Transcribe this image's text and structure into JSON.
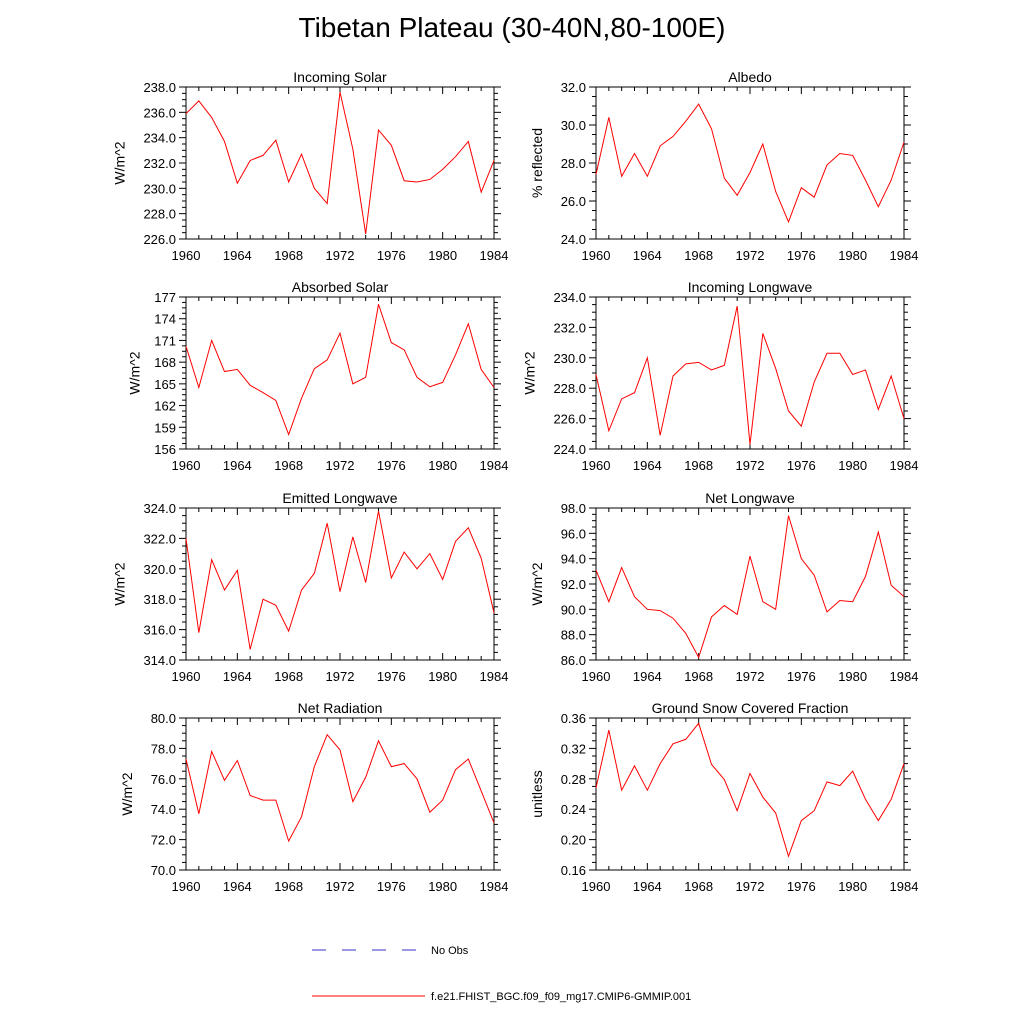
{
  "title": "Tibetan Plateau (30-40N,80-100E)",
  "colors": {
    "model": "#ff0000",
    "obs": "#3333cc",
    "axis": "#000000"
  },
  "legend": [
    {
      "label": "No Obs",
      "style": "dashed",
      "color": "#3333cc"
    },
    {
      "label": "f.e21.FHIST_BGC.f09_f09_mg17.CMIP6-GMMIP.001",
      "style": "solid",
      "color": "#ff0000"
    }
  ],
  "chart_data": [
    {
      "type": "line",
      "title": "Incoming Solar",
      "ylabel": "W/m^2",
      "x": [
        1960,
        1961,
        1962,
        1963,
        1964,
        1965,
        1966,
        1967,
        1968,
        1969,
        1970,
        1971,
        1972,
        1973,
        1974,
        1975,
        1976,
        1977,
        1978,
        1979,
        1980,
        1981,
        1982,
        1983,
        1984
      ],
      "values": [
        235.9,
        236.9,
        235.6,
        233.7,
        230.4,
        232.2,
        232.6,
        233.8,
        230.5,
        232.7,
        230.0,
        228.8,
        237.6,
        233.1,
        226.4,
        234.6,
        233.4,
        230.6,
        230.5,
        230.7,
        231.5,
        232.5,
        233.7,
        229.7,
        232.2
      ],
      "xlim": [
        1960,
        1984
      ],
      "ylim": [
        226.0,
        238.0
      ],
      "xticks": [
        "1960",
        "1964",
        "1968",
        "1972",
        "1976",
        "1980",
        "1984"
      ],
      "yticks": [
        "226.0",
        "228.0",
        "230.0",
        "232.0",
        "234.0",
        "236.0",
        "238.0"
      ]
    },
    {
      "type": "line",
      "title": "Albedo",
      "ylabel": "% reflected",
      "x": [
        1960,
        1961,
        1962,
        1963,
        1964,
        1965,
        1966,
        1967,
        1968,
        1969,
        1970,
        1971,
        1972,
        1973,
        1974,
        1975,
        1976,
        1977,
        1978,
        1979,
        1980,
        1981,
        1982,
        1983,
        1984
      ],
      "values": [
        27.4,
        30.4,
        27.3,
        28.5,
        27.3,
        28.9,
        29.4,
        30.2,
        31.1,
        29.8,
        27.2,
        26.3,
        27.5,
        29.0,
        26.5,
        24.9,
        26.7,
        26.2,
        27.9,
        28.5,
        28.4,
        27.1,
        25.7,
        27.1,
        29.1
      ],
      "xlim": [
        1960,
        1984
      ],
      "ylim": [
        24.0,
        32.0
      ],
      "xticks": [
        "1960",
        "1964",
        "1968",
        "1972",
        "1976",
        "1980",
        "1984"
      ],
      "yticks": [
        "24.0",
        "26.0",
        "28.0",
        "30.0",
        "32.0"
      ]
    },
    {
      "type": "line",
      "title": "Absorbed Solar",
      "ylabel": "W/m^2",
      "x": [
        1960,
        1961,
        1962,
        1963,
        1964,
        1965,
        1966,
        1967,
        1968,
        1969,
        1970,
        1971,
        1972,
        1973,
        1974,
        1975,
        1976,
        1977,
        1978,
        1979,
        1980,
        1981,
        1982,
        1983,
        1984
      ],
      "values": [
        170.2,
        164.5,
        171.0,
        166.7,
        167.0,
        164.8,
        163.8,
        162.7,
        158.0,
        163.0,
        167.1,
        168.3,
        172.0,
        165.0,
        165.9,
        176.0,
        170.7,
        169.7,
        165.9,
        164.6,
        165.2,
        169.0,
        173.3,
        167.0,
        164.5
      ],
      "xlim": [
        1960,
        1984
      ],
      "ylim": [
        156,
        177
      ],
      "xticks": [
        "1960",
        "1964",
        "1968",
        "1972",
        "1976",
        "1980",
        "1984"
      ],
      "yticks": [
        "156",
        "159",
        "162",
        "165",
        "168",
        "171",
        "174",
        "177"
      ]
    },
    {
      "type": "line",
      "title": "Incoming Longwave",
      "ylabel": "W/m^2",
      "x": [
        1960,
        1961,
        1962,
        1963,
        1964,
        1965,
        1966,
        1967,
        1968,
        1969,
        1970,
        1971,
        1972,
        1973,
        1974,
        1975,
        1976,
        1977,
        1978,
        1979,
        1980,
        1981,
        1982,
        1983,
        1984
      ],
      "values": [
        228.9,
        225.2,
        227.3,
        227.7,
        230.0,
        224.9,
        228.8,
        229.6,
        229.7,
        229.2,
        229.5,
        233.4,
        224.3,
        231.6,
        229.3,
        226.5,
        225.5,
        228.4,
        230.3,
        230.3,
        228.9,
        229.2,
        226.6,
        228.8,
        226.0
      ],
      "xlim": [
        1960,
        1984
      ],
      "ylim": [
        224.0,
        234.0
      ],
      "xticks": [
        "1960",
        "1964",
        "1968",
        "1972",
        "1976",
        "1980",
        "1984"
      ],
      "yticks": [
        "224.0",
        "226.0",
        "228.0",
        "230.0",
        "232.0",
        "234.0"
      ]
    },
    {
      "type": "line",
      "title": "Emitted Longwave",
      "ylabel": "W/m^2",
      "x": [
        1960,
        1961,
        1962,
        1963,
        1964,
        1965,
        1966,
        1967,
        1968,
        1969,
        1970,
        1971,
        1972,
        1973,
        1974,
        1975,
        1976,
        1977,
        1978,
        1979,
        1980,
        1981,
        1982,
        1983,
        1984
      ],
      "values": [
        322.0,
        315.8,
        320.6,
        318.6,
        319.9,
        314.7,
        318.0,
        317.6,
        315.9,
        318.6,
        319.7,
        323.0,
        318.5,
        322.1,
        319.1,
        323.8,
        319.4,
        321.1,
        320.0,
        321.0,
        319.3,
        321.8,
        322.7,
        320.7,
        317.1
      ],
      "xlim": [
        1960,
        1984
      ],
      "ylim": [
        314.0,
        324.0
      ],
      "xticks": [
        "1960",
        "1964",
        "1968",
        "1972",
        "1976",
        "1980",
        "1984"
      ],
      "yticks": [
        "314.0",
        "316.0",
        "318.0",
        "320.0",
        "322.0",
        "324.0"
      ]
    },
    {
      "type": "line",
      "title": "Net Longwave",
      "ylabel": "W/m^2",
      "x": [
        1960,
        1961,
        1962,
        1963,
        1964,
        1965,
        1966,
        1967,
        1968,
        1969,
        1970,
        1971,
        1972,
        1973,
        1974,
        1975,
        1976,
        1977,
        1978,
        1979,
        1980,
        1981,
        1982,
        1983,
        1984
      ],
      "values": [
        93.1,
        90.6,
        93.3,
        91.0,
        90.0,
        89.9,
        89.3,
        88.1,
        86.2,
        89.4,
        90.3,
        89.6,
        94.2,
        90.6,
        90.0,
        97.4,
        94.0,
        92.7,
        89.8,
        90.7,
        90.6,
        92.6,
        96.1,
        91.9,
        91.0
      ],
      "xlim": [
        1960,
        1984
      ],
      "ylim": [
        86.0,
        98.0
      ],
      "xticks": [
        "1960",
        "1964",
        "1968",
        "1972",
        "1976",
        "1980",
        "1984"
      ],
      "yticks": [
        "86.0",
        "88.0",
        "90.0",
        "92.0",
        "94.0",
        "96.0",
        "98.0"
      ]
    },
    {
      "type": "line",
      "title": "Net Radiation",
      "ylabel": "W/m^2",
      "x": [
        1960,
        1961,
        1962,
        1963,
        1964,
        1965,
        1966,
        1967,
        1968,
        1969,
        1970,
        1971,
        1972,
        1973,
        1974,
        1975,
        1976,
        1977,
        1978,
        1979,
        1980,
        1981,
        1982,
        1983,
        1984
      ],
      "values": [
        77.3,
        73.7,
        77.8,
        75.9,
        77.2,
        74.9,
        74.6,
        74.6,
        71.9,
        73.5,
        76.8,
        78.9,
        77.9,
        74.5,
        76.1,
        78.5,
        76.8,
        77.0,
        76.0,
        73.8,
        74.6,
        76.6,
        77.3,
        75.2,
        73.1
      ],
      "xlim": [
        1960,
        1984
      ],
      "ylim": [
        70.0,
        80.0
      ],
      "xticks": [
        "1960",
        "1964",
        "1968",
        "1972",
        "1976",
        "1980",
        "1984"
      ],
      "yticks": [
        "70.0",
        "72.0",
        "74.0",
        "76.0",
        "78.0",
        "80.0"
      ]
    },
    {
      "type": "line",
      "title": "Ground Snow Covered Fraction",
      "ylabel": "unitless",
      "x": [
        1960,
        1961,
        1962,
        1963,
        1964,
        1965,
        1966,
        1967,
        1968,
        1969,
        1970,
        1971,
        1972,
        1973,
        1974,
        1975,
        1976,
        1977,
        1978,
        1979,
        1980,
        1981,
        1982,
        1983,
        1984
      ],
      "values": [
        0.268,
        0.344,
        0.265,
        0.297,
        0.265,
        0.3,
        0.326,
        0.332,
        0.353,
        0.299,
        0.279,
        0.238,
        0.287,
        0.256,
        0.235,
        0.178,
        0.225,
        0.238,
        0.276,
        0.271,
        0.29,
        0.253,
        0.225,
        0.253,
        0.3
      ],
      "xlim": [
        1960,
        1984
      ],
      "ylim": [
        0.16,
        0.36
      ],
      "xticks": [
        "1960",
        "1964",
        "1968",
        "1972",
        "1976",
        "1980",
        "1984"
      ],
      "yticks": [
        "0.16",
        "0.20",
        "0.24",
        "0.28",
        "0.32",
        "0.36"
      ]
    }
  ]
}
